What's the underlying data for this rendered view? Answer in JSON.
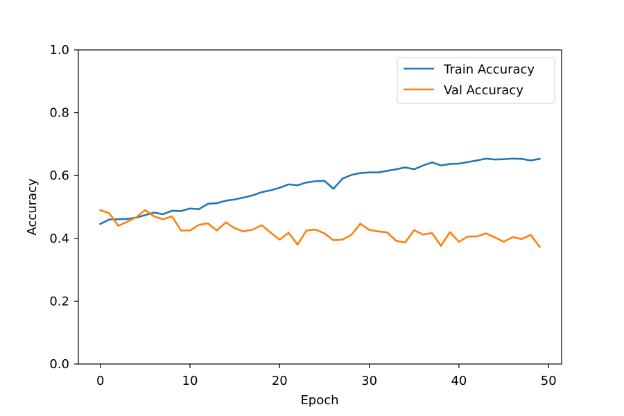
{
  "chart_data": {
    "type": "line",
    "title": "",
    "xlabel": "Epoch",
    "ylabel": "Accuracy",
    "xlim": [
      -2.45,
      51.45
    ],
    "ylim": [
      0,
      1
    ],
    "xticks": [
      0,
      10,
      20,
      30,
      40,
      50
    ],
    "yticks": [
      0.0,
      0.2,
      0.4,
      0.6,
      0.8,
      1.0
    ],
    "xtick_labels": [
      "0",
      "10",
      "20",
      "30",
      "40",
      "50"
    ],
    "ytick_labels": [
      "0.0",
      "0.2",
      "0.4",
      "0.6",
      "0.8",
      "1.0"
    ],
    "grid": false,
    "legend_position": "top-right",
    "x": [
      0,
      1,
      2,
      3,
      4,
      5,
      6,
      7,
      8,
      9,
      10,
      11,
      12,
      13,
      14,
      15,
      16,
      17,
      18,
      19,
      20,
      21,
      22,
      23,
      24,
      25,
      26,
      27,
      28,
      29,
      30,
      31,
      32,
      33,
      34,
      35,
      36,
      37,
      38,
      39,
      40,
      41,
      42,
      43,
      44,
      45,
      46,
      47,
      48,
      49
    ],
    "series": [
      {
        "name": "Train Accuracy",
        "color": "#1f77b4",
        "values": [
          0.446,
          0.46,
          0.461,
          0.462,
          0.466,
          0.474,
          0.482,
          0.477,
          0.488,
          0.487,
          0.495,
          0.493,
          0.51,
          0.512,
          0.52,
          0.524,
          0.53,
          0.537,
          0.547,
          0.553,
          0.561,
          0.572,
          0.569,
          0.578,
          0.582,
          0.583,
          0.558,
          0.59,
          0.602,
          0.608,
          0.61,
          0.61,
          0.615,
          0.62,
          0.626,
          0.62,
          0.632,
          0.642,
          0.632,
          0.637,
          0.638,
          0.643,
          0.648,
          0.654,
          0.651,
          0.652,
          0.654,
          0.653,
          0.648,
          0.653
        ]
      },
      {
        "name": "Val Accuracy",
        "color": "#ff7f0e",
        "values": [
          0.49,
          0.48,
          0.44,
          0.453,
          0.467,
          0.49,
          0.47,
          0.461,
          0.47,
          0.425,
          0.425,
          0.443,
          0.448,
          0.425,
          0.451,
          0.432,
          0.422,
          0.428,
          0.442,
          0.418,
          0.396,
          0.418,
          0.38,
          0.425,
          0.428,
          0.416,
          0.394,
          0.396,
          0.411,
          0.447,
          0.427,
          0.422,
          0.419,
          0.392,
          0.387,
          0.426,
          0.412,
          0.417,
          0.376,
          0.42,
          0.389,
          0.406,
          0.406,
          0.416,
          0.403,
          0.389,
          0.404,
          0.398,
          0.411,
          0.373
        ]
      }
    ]
  }
}
